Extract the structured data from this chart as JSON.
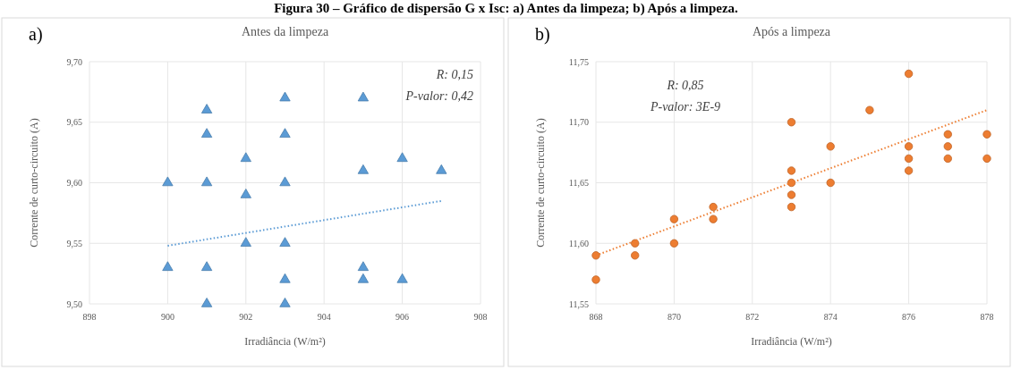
{
  "chart_data": [
    {
      "type": "scatter",
      "title": "Antes da limpeza",
      "xlabel": "Irradiância (W/m²)",
      "ylabel": "Corrente de curto-circuito (A)",
      "annotations": [
        "Figura 30 – Gráfico de dispersão G x Isc: a) Antes da limpeza; b) Após a limpeza.",
        "a)",
        "R: 0,15",
        "P-valor: 0,42"
      ],
      "xlim": [
        898,
        908
      ],
      "xticks": [
        898,
        900,
        902,
        904,
        906,
        908
      ],
      "ylim": [
        9.5,
        9.7
      ],
      "yticks": [
        {
          "value": 9.5,
          "label": "9,50"
        },
        {
          "value": 9.55,
          "label": "9,55"
        },
        {
          "value": 9.6,
          "label": "9,60"
        },
        {
          "value": 9.65,
          "label": "9,65"
        },
        {
          "value": 9.7,
          "label": "9,70"
        }
      ],
      "grid": true,
      "marker": "triangle",
      "series": [
        {
          "color": "#5b9bd5",
          "x": [
            900,
            900,
            901,
            901,
            901,
            901,
            901,
            902,
            902,
            902,
            903,
            903,
            903,
            903,
            903,
            903,
            905,
            905,
            905,
            905,
            906,
            906,
            907
          ],
          "values": [
            9.6,
            9.53,
            9.66,
            9.64,
            9.6,
            9.53,
            9.5,
            9.62,
            9.59,
            9.55,
            9.67,
            9.64,
            9.6,
            9.55,
            9.52,
            9.5,
            9.67,
            9.61,
            9.53,
            9.52,
            9.62,
            9.52,
            9.61
          ]
        },
        {
          "type": "line",
          "color": "#5b9bd5",
          "line_style": "dotted",
          "marker": "none",
          "x": [
            900,
            907
          ],
          "values": [
            9.548,
            9.585
          ]
        }
      ]
    },
    {
      "type": "scatter",
      "title": "Após a limpeza",
      "xlabel": "Irradiância (W/m²)",
      "ylabel": "Corrente de curto-circuito (A)",
      "annotations": [
        "b)",
        "R: 0,85",
        "P-valor: 3E-9"
      ],
      "xlim": [
        868,
        878
      ],
      "xticks": [
        868,
        870,
        872,
        874,
        876,
        878
      ],
      "ylim": [
        11.55,
        11.75
      ],
      "yticks": [
        {
          "value": 11.55,
          "label": "11,55"
        },
        {
          "value": 11.6,
          "label": "11,60"
        },
        {
          "value": 11.65,
          "label": "11,65"
        },
        {
          "value": 11.7,
          "label": "11,70"
        },
        {
          "value": 11.75,
          "label": "11,75"
        }
      ],
      "grid": true,
      "marker": "circle",
      "series": [
        {
          "color": "#ed7d31",
          "x": [
            868,
            868,
            869,
            869,
            870,
            870,
            871,
            871,
            873,
            873,
            873,
            873,
            873,
            874,
            874,
            875,
            876,
            876,
            876,
            876,
            877,
            877,
            877,
            878,
            878
          ],
          "values": [
            11.59,
            11.57,
            11.6,
            11.59,
            11.62,
            11.6,
            11.63,
            11.62,
            11.7,
            11.66,
            11.65,
            11.64,
            11.63,
            11.68,
            11.65,
            11.71,
            11.74,
            11.68,
            11.67,
            11.66,
            11.69,
            11.68,
            11.67,
            11.69,
            11.67
          ]
        },
        {
          "type": "line",
          "color": "#ed7d31",
          "line_style": "dotted",
          "marker": "none",
          "x": [
            868,
            878
          ],
          "values": [
            11.59,
            11.71
          ]
        }
      ]
    }
  ]
}
